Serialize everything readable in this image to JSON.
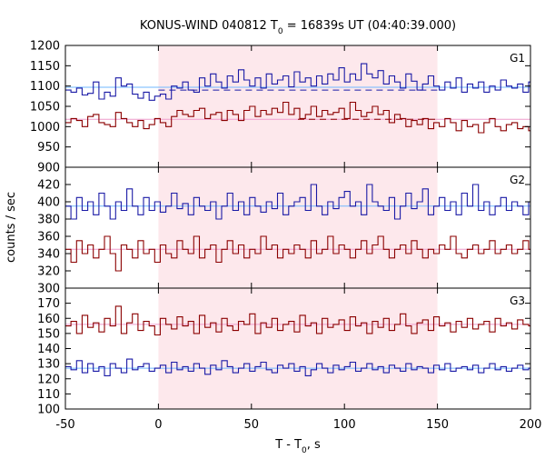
{
  "chart_data": {
    "type": "line",
    "title": "KONUS-WIND 040812 T",
    "title_sub": "0",
    "title_tail": " = 16839s UT (04:40:39.000)",
    "xlabel": "T - T",
    "xlabel_sub": "0",
    "xlabel_tail": ", s",
    "ylabel": "counts / sec",
    "xlim": [
      -50,
      200
    ],
    "x_ticks": [
      "-50",
      "0",
      "50",
      "100",
      "150",
      "200"
    ],
    "x_tick_values": [
      -50,
      0,
      50,
      100,
      150,
      200
    ],
    "bin_width": 3,
    "highlight": {
      "x_start": 0,
      "x_end": 150,
      "color": "#fde8ec"
    },
    "colors": {
      "blue": "#1a1aa6",
      "red": "#8b0000",
      "fit_blue": "#6fb7ff",
      "fit_red": "#ee9bcc"
    },
    "panels": [
      {
        "name": "G1",
        "ylim": [
          900,
          1200
        ],
        "y_ticks": [
          900,
          950,
          1000,
          1050,
          1100,
          1150,
          1200
        ],
        "series": [
          {
            "color": "blue",
            "x_start": -50,
            "values": [
              1090,
              1085,
              1095,
              1078,
              1082,
              1110,
              1068,
              1085,
              1075,
              1120,
              1100,
              1105,
              1080,
              1070,
              1085,
              1065,
              1075,
              1080,
              1068,
              1100,
              1095,
              1110,
              1090,
              1085,
              1120,
              1100,
              1130,
              1110,
              1095,
              1125,
              1110,
              1140,
              1115,
              1100,
              1120,
              1095,
              1130,
              1105,
              1115,
              1125,
              1098,
              1135,
              1110,
              1120,
              1100,
              1125,
              1105,
              1130,
              1115,
              1145,
              1110,
              1130,
              1115,
              1155,
              1130,
              1120,
              1138,
              1105,
              1125,
              1110,
              1095,
              1130,
              1112,
              1090,
              1105,
              1125,
              1100,
              1090,
              1110,
              1095,
              1120,
              1085,
              1105,
              1095,
              1110,
              1085,
              1100,
              1090,
              1115,
              1100,
              1095,
              1105,
              1085,
              1110
            ]
          },
          {
            "color": "red",
            "x_start": -50,
            "values": [
              1010,
              1020,
              1015,
              1000,
              1025,
              1030,
              1010,
              1005,
              1000,
              1035,
              1020,
              1010,
              1000,
              1015,
              995,
              1005,
              1020,
              1010,
              1000,
              1025,
              1040,
              1030,
              1025,
              1040,
              1045,
              1020,
              1030,
              1035,
              1015,
              1040,
              1030,
              1015,
              1040,
              1050,
              1025,
              1040,
              1030,
              1045,
              1035,
              1060,
              1030,
              1045,
              1020,
              1030,
              1050,
              1025,
              1040,
              1030,
              1035,
              1045,
              1020,
              1060,
              1040,
              1025,
              1035,
              1050,
              1030,
              1040,
              1010,
              1030,
              1020,
              1000,
              1015,
              1005,
              1020,
              995,
              1010,
              1000,
              1020,
              1010,
              990,
              1015,
              1000,
              1005,
              985,
              1010,
              1020,
              1000,
              990,
              1005,
              1010,
              995,
              1000,
              990
            ]
          }
        ],
        "fits": [
          {
            "color": "fit_blue",
            "y": 1097
          },
          {
            "color": "fit_red",
            "y": 1018
          }
        ],
        "background_levels": [
          {
            "color": "blue",
            "y": 1090,
            "x_start": 0,
            "x_end": 150
          },
          {
            "color": "red",
            "y": 1018,
            "x_start": 75,
            "x_end": 150
          }
        ]
      },
      {
        "name": "G2",
        "ylim": [
          300,
          440
        ],
        "y_ticks": [
          300,
          320,
          340,
          360,
          380,
          400,
          420
        ],
        "series": [
          {
            "color": "blue",
            "x_start": -50,
            "values": [
              395,
              380,
              405,
              390,
              400,
              385,
              410,
              395,
              380,
              400,
              390,
              415,
              395,
              385,
              405,
              390,
              400,
              388,
              395,
              410,
              392,
              398,
              385,
              405,
              395,
              390,
              400,
              380,
              395,
              410,
              390,
              400,
              385,
              405,
              395,
              388,
              400,
              392,
              410,
              385,
              395,
              400,
              405,
              390,
              420,
              395,
              385,
              400,
              392,
              405,
              412,
              395,
              400,
              385,
              420,
              400,
              395,
              390,
              405,
              380,
              395,
              410,
              392,
              400,
              415,
              385,
              395,
              405,
              390,
              400,
              385,
              410,
              395,
              420,
              390,
              400,
              385,
              395,
              405,
              390,
              400,
              395,
              385,
              400
            ]
          },
          {
            "color": "red",
            "x_start": -50,
            "values": [
              345,
              330,
              355,
              340,
              350,
              335,
              345,
              360,
              340,
              320,
              350,
              345,
              335,
              355,
              340,
              345,
              330,
              350,
              340,
              335,
              355,
              345,
              340,
              360,
              335,
              345,
              350,
              330,
              345,
              355,
              340,
              350,
              335,
              345,
              340,
              360,
              345,
              350,
              335,
              345,
              340,
              350,
              345,
              335,
              355,
              340,
              345,
              360,
              340,
              350,
              345,
              335,
              345,
              355,
              340,
              350,
              360,
              345,
              335,
              345,
              350,
              340,
              355,
              345,
              335,
              345,
              340,
              350,
              345,
              360,
              340,
              335,
              345,
              350,
              340,
              345,
              355,
              340,
              345,
              350,
              340,
              345,
              355,
              345
            ]
          }
        ],
        "fits": [
          {
            "color": "fit_blue",
            "y": 395
          },
          {
            "color": "fit_red",
            "y": 345
          }
        ]
      },
      {
        "name": "G3",
        "ylim": [
          100,
          180
        ],
        "y_ticks": [
          100,
          110,
          120,
          130,
          140,
          150,
          160,
          170
        ],
        "series": [
          {
            "color": "blue",
            "x_start": -50,
            "values": [
              128,
              126,
              132,
              124,
              130,
              125,
              128,
              122,
              130,
              127,
              124,
              133,
              126,
              128,
              130,
              125,
              127,
              129,
              124,
              131,
              126,
              128,
              125,
              130,
              127,
              123,
              129,
              126,
              132,
              128,
              124,
              127,
              130,
              125,
              128,
              131,
              126,
              124,
              129,
              127,
              130,
              125,
              128,
              122,
              126,
              130,
              127,
              124,
              129,
              126,
              128,
              131,
              125,
              127,
              130,
              126,
              128,
              124,
              129,
              127,
              125,
              130,
              126,
              128,
              127,
              124,
              129,
              126,
              130,
              125,
              127,
              128,
              126,
              129,
              124,
              127,
              130,
              126,
              128,
              125,
              127,
              129,
              126,
              127
            ]
          },
          {
            "color": "red",
            "x_start": -50,
            "values": [
              155,
              158,
              150,
              162,
              154,
              157,
              151,
              160,
              155,
              168,
              150,
              157,
              163,
              152,
              158,
              155,
              149,
              160,
              156,
              153,
              161,
              155,
              158,
              150,
              162,
              154,
              157,
              151,
              160,
              155,
              152,
              158,
              156,
              163,
              150,
              157,
              154,
              160,
              152,
              156,
              158,
              151,
              162,
              155,
              157,
              150,
              160,
              154,
              156,
              159,
              152,
              161,
              155,
              157,
              150,
              158,
              154,
              160,
              152,
              156,
              163,
              155,
              150,
              157,
              159,
              152,
              161,
              155,
              157,
              151,
              158,
              154,
              160,
              153,
              156,
              158,
              151,
              160,
              155,
              157,
              153,
              159,
              156,
              155
            ]
          }
        ],
        "fits": [
          {
            "color": "fit_red",
            "y": 156
          },
          {
            "color": "fit_blue",
            "y": 127
          }
        ]
      }
    ]
  }
}
